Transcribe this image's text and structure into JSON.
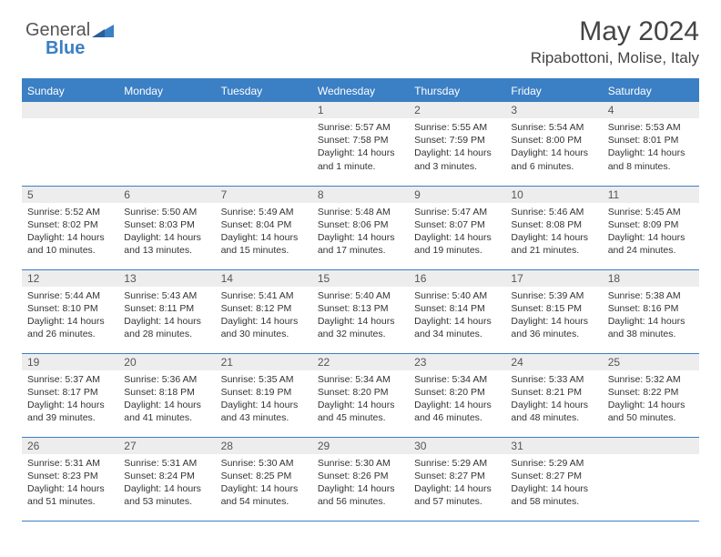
{
  "logo": {
    "part1": "General",
    "part2": "Blue"
  },
  "title": "May 2024",
  "location": "Ripabottoni, Molise, Italy",
  "header_bg": "#3b7fc4",
  "days": [
    "Sunday",
    "Monday",
    "Tuesday",
    "Wednesday",
    "Thursday",
    "Friday",
    "Saturday"
  ],
  "weeks": [
    [
      null,
      null,
      null,
      {
        "n": "1",
        "sr": "5:57 AM",
        "ss": "7:58 PM",
        "dl": "14 hours and 1 minute."
      },
      {
        "n": "2",
        "sr": "5:55 AM",
        "ss": "7:59 PM",
        "dl": "14 hours and 3 minutes."
      },
      {
        "n": "3",
        "sr": "5:54 AM",
        "ss": "8:00 PM",
        "dl": "14 hours and 6 minutes."
      },
      {
        "n": "4",
        "sr": "5:53 AM",
        "ss": "8:01 PM",
        "dl": "14 hours and 8 minutes."
      }
    ],
    [
      {
        "n": "5",
        "sr": "5:52 AM",
        "ss": "8:02 PM",
        "dl": "14 hours and 10 minutes."
      },
      {
        "n": "6",
        "sr": "5:50 AM",
        "ss": "8:03 PM",
        "dl": "14 hours and 13 minutes."
      },
      {
        "n": "7",
        "sr": "5:49 AM",
        "ss": "8:04 PM",
        "dl": "14 hours and 15 minutes."
      },
      {
        "n": "8",
        "sr": "5:48 AM",
        "ss": "8:06 PM",
        "dl": "14 hours and 17 minutes."
      },
      {
        "n": "9",
        "sr": "5:47 AM",
        "ss": "8:07 PM",
        "dl": "14 hours and 19 minutes."
      },
      {
        "n": "10",
        "sr": "5:46 AM",
        "ss": "8:08 PM",
        "dl": "14 hours and 21 minutes."
      },
      {
        "n": "11",
        "sr": "5:45 AM",
        "ss": "8:09 PM",
        "dl": "14 hours and 24 minutes."
      }
    ],
    [
      {
        "n": "12",
        "sr": "5:44 AM",
        "ss": "8:10 PM",
        "dl": "14 hours and 26 minutes."
      },
      {
        "n": "13",
        "sr": "5:43 AM",
        "ss": "8:11 PM",
        "dl": "14 hours and 28 minutes."
      },
      {
        "n": "14",
        "sr": "5:41 AM",
        "ss": "8:12 PM",
        "dl": "14 hours and 30 minutes."
      },
      {
        "n": "15",
        "sr": "5:40 AM",
        "ss": "8:13 PM",
        "dl": "14 hours and 32 minutes."
      },
      {
        "n": "16",
        "sr": "5:40 AM",
        "ss": "8:14 PM",
        "dl": "14 hours and 34 minutes."
      },
      {
        "n": "17",
        "sr": "5:39 AM",
        "ss": "8:15 PM",
        "dl": "14 hours and 36 minutes."
      },
      {
        "n": "18",
        "sr": "5:38 AM",
        "ss": "8:16 PM",
        "dl": "14 hours and 38 minutes."
      }
    ],
    [
      {
        "n": "19",
        "sr": "5:37 AM",
        "ss": "8:17 PM",
        "dl": "14 hours and 39 minutes."
      },
      {
        "n": "20",
        "sr": "5:36 AM",
        "ss": "8:18 PM",
        "dl": "14 hours and 41 minutes."
      },
      {
        "n": "21",
        "sr": "5:35 AM",
        "ss": "8:19 PM",
        "dl": "14 hours and 43 minutes."
      },
      {
        "n": "22",
        "sr": "5:34 AM",
        "ss": "8:20 PM",
        "dl": "14 hours and 45 minutes."
      },
      {
        "n": "23",
        "sr": "5:34 AM",
        "ss": "8:20 PM",
        "dl": "14 hours and 46 minutes."
      },
      {
        "n": "24",
        "sr": "5:33 AM",
        "ss": "8:21 PM",
        "dl": "14 hours and 48 minutes."
      },
      {
        "n": "25",
        "sr": "5:32 AM",
        "ss": "8:22 PM",
        "dl": "14 hours and 50 minutes."
      }
    ],
    [
      {
        "n": "26",
        "sr": "5:31 AM",
        "ss": "8:23 PM",
        "dl": "14 hours and 51 minutes."
      },
      {
        "n": "27",
        "sr": "5:31 AM",
        "ss": "8:24 PM",
        "dl": "14 hours and 53 minutes."
      },
      {
        "n": "28",
        "sr": "5:30 AM",
        "ss": "8:25 PM",
        "dl": "14 hours and 54 minutes."
      },
      {
        "n": "29",
        "sr": "5:30 AM",
        "ss": "8:26 PM",
        "dl": "14 hours and 56 minutes."
      },
      {
        "n": "30",
        "sr": "5:29 AM",
        "ss": "8:27 PM",
        "dl": "14 hours and 57 minutes."
      },
      {
        "n": "31",
        "sr": "5:29 AM",
        "ss": "8:27 PM",
        "dl": "14 hours and 58 minutes."
      },
      null
    ]
  ],
  "labels": {
    "sunrise": "Sunrise:",
    "sunset": "Sunset:",
    "daylight": "Daylight:"
  }
}
